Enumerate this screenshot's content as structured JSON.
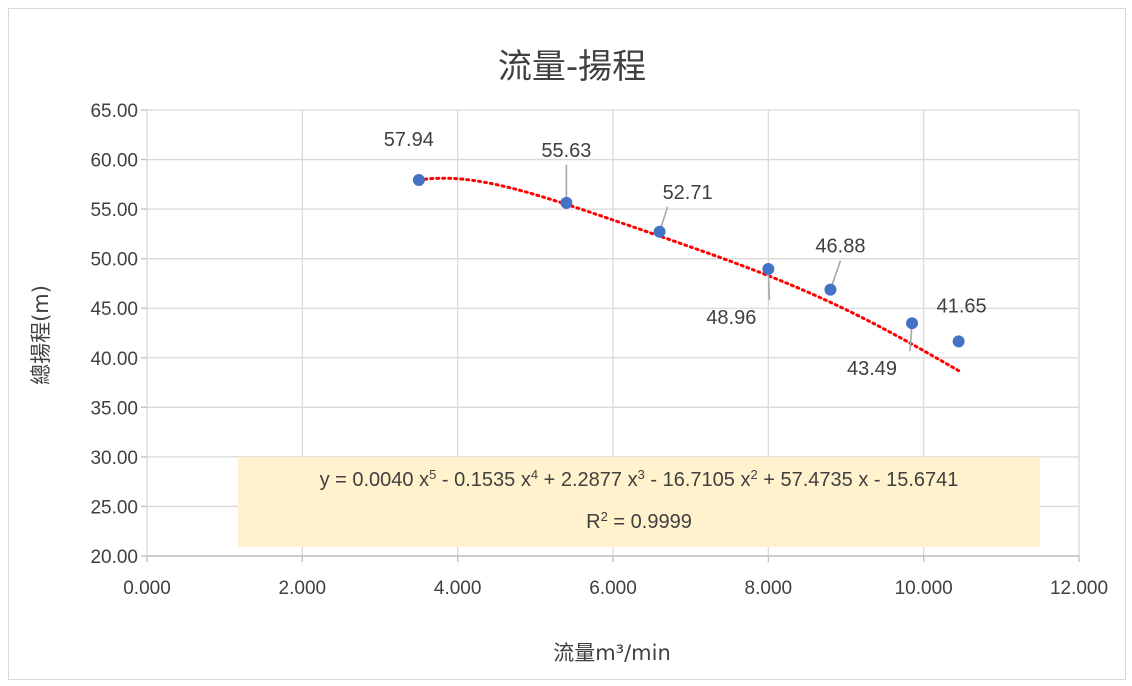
{
  "chart_data": {
    "type": "scatter",
    "title": "流量-揚程",
    "xlabel": "流量m³/min",
    "ylabel": "總揚程(m)",
    "xlim": [
      0,
      12
    ],
    "ylim": [
      20,
      65
    ],
    "x_ticks": [
      "0.000",
      "2.000",
      "4.000",
      "6.000",
      "8.000",
      "10.000",
      "12.000"
    ],
    "y_ticks": [
      "20.00",
      "25.00",
      "30.00",
      "35.00",
      "40.00",
      "45.00",
      "50.00",
      "55.00",
      "60.00",
      "65.00"
    ],
    "grid": "both-major",
    "series": [
      {
        "points": [
          {
            "x": 3.5,
            "y": 57.94,
            "label": "57.94"
          },
          {
            "x": 5.4,
            "y": 55.63,
            "label": "55.63"
          },
          {
            "x": 6.6,
            "y": 52.71,
            "label": "52.71"
          },
          {
            "x": 8.0,
            "y": 48.96,
            "label": "48.96"
          },
          {
            "x": 8.8,
            "y": 46.88,
            "label": "46.88"
          },
          {
            "x": 9.85,
            "y": 43.49,
            "label": "43.49"
          },
          {
            "x": 10.45,
            "y": 41.65,
            "label": "41.65"
          }
        ],
        "color": "#4472c4"
      }
    ],
    "trendline": {
      "type": "polynomial",
      "order": 5,
      "color": "#ff0000",
      "style": "dotted",
      "coefficients": [
        0.004,
        -0.1535,
        2.2877,
        -16.7105,
        57.4735,
        -15.6741
      ],
      "equation": {
        "y_part": "y = 0.0040 x",
        "exp5": "5",
        "t4": " - 0.1535 x",
        "exp4": "4",
        "t3": " + 2.2877 x",
        "exp3": "3",
        "t2": " - 16.7105 x",
        "exp2": "2",
        "t1": " + 57.4735 x - 15.6741"
      },
      "r2": {
        "prefix": "R",
        "exp": "2",
        "value": " = 0.9999"
      }
    }
  }
}
